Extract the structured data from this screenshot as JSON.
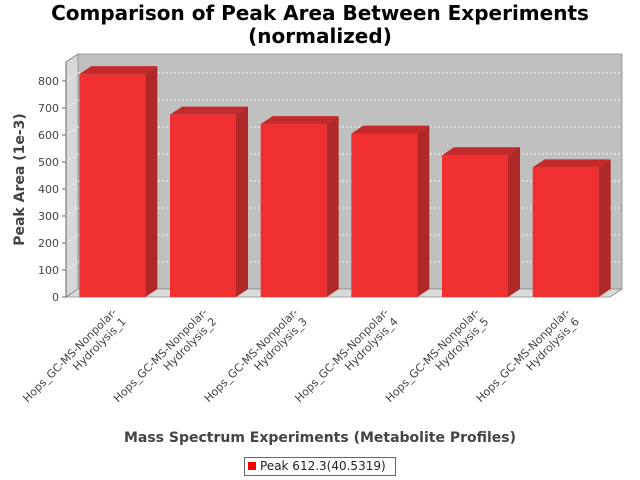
{
  "chart_data": {
    "type": "bar",
    "title": [
      "Comparison of Peak Area Between Experiments",
      "(normalized)"
    ],
    "xlabel": "Mass Spectrum Experiments (Metabolite Profiles)",
    "ylabel": "Peak Area (1e-3)",
    "categories": [
      [
        "Hops_GC-MS-Nonpolar-",
        "Hydrolysis_1"
      ],
      [
        "Hops_GC-MS-Nonpolar-",
        "Hydrolysis_2"
      ],
      [
        "Hops_GC-MS-Nonpolar-",
        "Hydrolysis_3"
      ],
      [
        "Hops_GC-MS-Nonpolar-",
        "Hydrolysis_4"
      ],
      [
        "Hops_GC-MS-Nonpolar-",
        "Hydrolysis_5"
      ],
      [
        "Hops_GC-MS-Nonpolar-",
        "Hydrolysis_6"
      ]
    ],
    "series": [
      {
        "name": "Peak 612.3(40.5319)",
        "color": "#ff0000",
        "values": [
          825,
          675,
          640,
          605,
          525,
          480
        ]
      }
    ],
    "ylim": [
      0,
      870
    ],
    "yticks": [
      0,
      100,
      200,
      300,
      400,
      500,
      600,
      700,
      800
    ],
    "grid": true,
    "legend_position": "bottom",
    "style": "3d"
  }
}
